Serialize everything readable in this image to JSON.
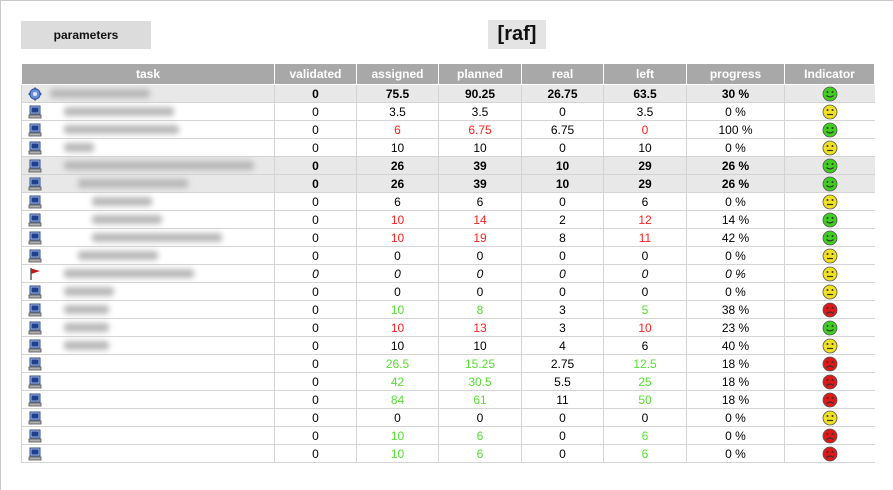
{
  "toolbar": {
    "parameters_label": "parameters"
  },
  "page_title": "[raf]",
  "columns": [
    "task",
    "validated",
    "assigned",
    "planned",
    "real",
    "left",
    "progress",
    "Indicator"
  ],
  "colors": {
    "header_bg": "#a8a8a8",
    "red_value": "#ff2020",
    "green_value": "#55e030",
    "smile_green": "#3fcf1f",
    "smile_yellow": "#f0e020",
    "smile_red": "#e01818"
  },
  "rows": [
    {
      "icon": "gear-icon",
      "depth": 0,
      "blur": 100,
      "validated": "0",
      "assigned": "75.5",
      "planned": "90.25",
      "real": "26.75",
      "left": "63.5",
      "progress": "30 %",
      "indicator": "green",
      "style": "bold shade",
      "assigned_c": "",
      "planned_c": "",
      "left_c": ""
    },
    {
      "icon": "computer-icon",
      "depth": 1,
      "blur": 110,
      "validated": "0",
      "assigned": "3.5",
      "planned": "3.5",
      "real": "0",
      "left": "3.5",
      "progress": "0 %",
      "indicator": "yellow",
      "style": "",
      "assigned_c": "",
      "planned_c": "",
      "left_c": ""
    },
    {
      "icon": "computer-icon",
      "depth": 1,
      "blur": 115,
      "validated": "0",
      "assigned": "6",
      "planned": "6.75",
      "real": "6.75",
      "left": "0",
      "progress": "100 %",
      "indicator": "green",
      "style": "",
      "assigned_c": "red",
      "planned_c": "red",
      "left_c": "red"
    },
    {
      "icon": "computer-icon",
      "depth": 1,
      "blur": 30,
      "validated": "0",
      "assigned": "10",
      "planned": "10",
      "real": "0",
      "left": "10",
      "progress": "0 %",
      "indicator": "yellow",
      "style": "",
      "assigned_c": "",
      "planned_c": "",
      "left_c": ""
    },
    {
      "icon": "computer-icon",
      "depth": 1,
      "blur": 190,
      "validated": "0",
      "assigned": "26",
      "planned": "39",
      "real": "10",
      "left": "29",
      "progress": "26 %",
      "indicator": "green",
      "style": "bold shade",
      "assigned_c": "",
      "planned_c": "",
      "left_c": ""
    },
    {
      "icon": "computer-icon",
      "depth": 2,
      "blur": 110,
      "validated": "0",
      "assigned": "26",
      "planned": "39",
      "real": "10",
      "left": "29",
      "progress": "26 %",
      "indicator": "green",
      "style": "bold shade",
      "assigned_c": "",
      "planned_c": "",
      "left_c": ""
    },
    {
      "icon": "computer-icon",
      "depth": 3,
      "blur": 60,
      "validated": "0",
      "assigned": "6",
      "planned": "6",
      "real": "0",
      "left": "6",
      "progress": "0 %",
      "indicator": "yellow",
      "style": "",
      "assigned_c": "",
      "planned_c": "",
      "left_c": ""
    },
    {
      "icon": "computer-icon",
      "depth": 3,
      "blur": 70,
      "validated": "0",
      "assigned": "10",
      "planned": "14",
      "real": "2",
      "left": "12",
      "progress": "14 %",
      "indicator": "green",
      "style": "",
      "assigned_c": "red",
      "planned_c": "red",
      "left_c": "red"
    },
    {
      "icon": "computer-icon",
      "depth": 3,
      "blur": 130,
      "validated": "0",
      "assigned": "10",
      "planned": "19",
      "real": "8",
      "left": "11",
      "progress": "42 %",
      "indicator": "green",
      "style": "",
      "assigned_c": "red",
      "planned_c": "red",
      "left_c": "red"
    },
    {
      "icon": "computer-icon",
      "depth": 2,
      "blur": 80,
      "validated": "0",
      "assigned": "0",
      "planned": "0",
      "real": "0",
      "left": "0",
      "progress": "0 %",
      "indicator": "yellow",
      "style": "",
      "assigned_c": "",
      "planned_c": "",
      "left_c": ""
    },
    {
      "icon": "flag-icon",
      "depth": 1,
      "blur": 130,
      "validated": "0",
      "assigned": "0",
      "planned": "0",
      "real": "0",
      "left": "0",
      "progress": "0 %",
      "indicator": "yellow",
      "style": "ital",
      "assigned_c": "",
      "planned_c": "",
      "left_c": ""
    },
    {
      "icon": "computer-icon",
      "depth": 1,
      "blur": 50,
      "validated": "0",
      "assigned": "0",
      "planned": "0",
      "real": "0",
      "left": "0",
      "progress": "0 %",
      "indicator": "yellow",
      "style": "",
      "assigned_c": "",
      "planned_c": "",
      "left_c": ""
    },
    {
      "icon": "computer-icon",
      "depth": 1,
      "blur": 45,
      "validated": "0",
      "assigned": "10",
      "planned": "8",
      "real": "3",
      "left": "5",
      "progress": "38 %",
      "indicator": "red",
      "style": "",
      "assigned_c": "green",
      "planned_c": "green",
      "left_c": "green"
    },
    {
      "icon": "computer-icon",
      "depth": 1,
      "blur": 45,
      "validated": "0",
      "assigned": "10",
      "planned": "13",
      "real": "3",
      "left": "10",
      "progress": "23 %",
      "indicator": "green",
      "style": "",
      "assigned_c": "red",
      "planned_c": "red",
      "left_c": "red"
    },
    {
      "icon": "computer-icon",
      "depth": 1,
      "blur": 45,
      "validated": "0",
      "assigned": "10",
      "planned": "10",
      "real": "4",
      "left": "6",
      "progress": "40 %",
      "indicator": "yellow",
      "style": "",
      "assigned_c": "",
      "planned_c": "",
      "left_c": ""
    },
    {
      "icon": "computer-icon",
      "depth": 0,
      "blur": 0,
      "validated": "0",
      "assigned": "26.5",
      "planned": "15.25",
      "real": "2.75",
      "left": "12.5",
      "progress": "18 %",
      "indicator": "red",
      "style": "",
      "assigned_c": "green",
      "planned_c": "green",
      "left_c": "green"
    },
    {
      "icon": "computer-icon",
      "depth": 0,
      "blur": 0,
      "validated": "0",
      "assigned": "42",
      "planned": "30.5",
      "real": "5.5",
      "left": "25",
      "progress": "18 %",
      "indicator": "red",
      "style": "",
      "assigned_c": "green",
      "planned_c": "green",
      "left_c": "green"
    },
    {
      "icon": "computer-icon",
      "depth": 0,
      "blur": 0,
      "validated": "0",
      "assigned": "84",
      "planned": "61",
      "real": "11",
      "left": "50",
      "progress": "18 %",
      "indicator": "red",
      "style": "",
      "assigned_c": "green",
      "planned_c": "green",
      "left_c": "green"
    },
    {
      "icon": "computer-icon",
      "depth": 0,
      "blur": 0,
      "validated": "0",
      "assigned": "0",
      "planned": "0",
      "real": "0",
      "left": "0",
      "progress": "0 %",
      "indicator": "yellow",
      "style": "",
      "assigned_c": "",
      "planned_c": "",
      "left_c": ""
    },
    {
      "icon": "computer-icon",
      "depth": 0,
      "blur": 0,
      "validated": "0",
      "assigned": "10",
      "planned": "6",
      "real": "0",
      "left": "6",
      "progress": "0 %",
      "indicator": "red",
      "style": "",
      "assigned_c": "green",
      "planned_c": "green",
      "left_c": "green"
    },
    {
      "icon": "computer-icon",
      "depth": 0,
      "blur": 0,
      "validated": "0",
      "assigned": "10",
      "planned": "6",
      "real": "0",
      "left": "6",
      "progress": "0 %",
      "indicator": "red",
      "style": "",
      "assigned_c": "green",
      "planned_c": "green",
      "left_c": "green"
    }
  ]
}
